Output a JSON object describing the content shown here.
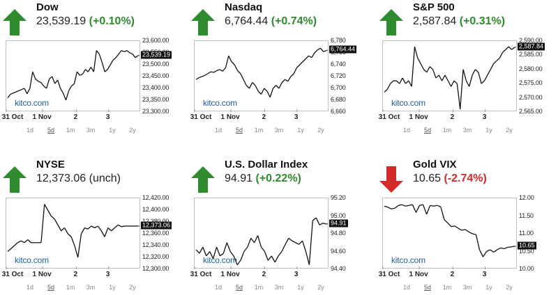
{
  "range_labels": [
    "1d",
    "5d",
    "1m",
    "3m",
    "1y",
    "2y"
  ],
  "active_range": "5d",
  "brand": "kitco.com",
  "colors": {
    "up": "#2e8b2e",
    "down": "#d42a2a",
    "line": "#111111",
    "grid": "#bfbfbf"
  },
  "panels": [
    {
      "name": "Dow",
      "price": "23,539.19",
      "change": "(+0.10%)",
      "direction": "up",
      "current_label": "23,539.19",
      "chart_data": {
        "type": "line",
        "x_labels": [
          "31 Oct",
          "1 Nov",
          "2",
          "3"
        ],
        "y_ticks": [
          "23,600.00",
          "23,550.00",
          "23,500.00",
          "23,450.00",
          "23,400.00",
          "23,350.00",
          "23,300.00"
        ],
        "ylim": [
          23300,
          23600
        ],
        "current": 23539.19,
        "values": [
          23360,
          23375,
          23380,
          23385,
          23390,
          23395,
          23400,
          23377,
          23400,
          23470,
          23440,
          23430,
          23425,
          23410,
          23400,
          23440,
          23450,
          23420,
          23435,
          23400,
          23380,
          23350,
          23390,
          23410,
          23420,
          23470,
          23455,
          23460,
          23480,
          23470,
          23490,
          23470,
          23560,
          23545,
          23510,
          23470,
          23480,
          23500,
          23520,
          23530,
          23545,
          23560,
          23555,
          23560,
          23550,
          23545,
          23530,
          23539
        ]
      }
    },
    {
      "name": "Nasdaq",
      "price": "6,764.44",
      "change": "(+0.74%)",
      "direction": "up",
      "current_label": "6,764.44",
      "chart_data": {
        "type": "line",
        "x_labels": [
          "31 Oct",
          "1 Nov",
          "2",
          "3"
        ],
        "y_ticks": [
          "6,780",
          "6,760",
          "6,740",
          "6,720",
          "6,700",
          "6,680",
          "6,660"
        ],
        "ylim": [
          6660,
          6780
        ],
        "current": 6764.44,
        "values": [
          6715,
          6718,
          6720,
          6722,
          6725,
          6728,
          6727,
          6730,
          6732,
          6729,
          6735,
          6755,
          6745,
          6740,
          6730,
          6725,
          6715,
          6705,
          6700,
          6710,
          6705,
          6695,
          6690,
          6700,
          6695,
          6685,
          6700,
          6705,
          6700,
          6710,
          6715,
          6712,
          6720,
          6725,
          6735,
          6740,
          6745,
          6750,
          6755,
          6752,
          6760,
          6765,
          6768,
          6762,
          6764
        ]
      }
    },
    {
      "name": "S&P 500",
      "price": "2,587.84",
      "change": "(+0.31%)",
      "direction": "up",
      "current_label": "2,587.84",
      "chart_data": {
        "type": "line",
        "x_labels": [
          "31 Oct",
          "1 Nov",
          "2",
          "3"
        ],
        "y_ticks": [
          "2,590.00",
          "2,585.00",
          "2,580.00",
          "2,575.00",
          "2,570.00",
          "2,565.00"
        ],
        "ylim": [
          2565,
          2590
        ],
        "current": 2587.84,
        "values": [
          2572,
          2573,
          2575,
          2576,
          2576,
          2575,
          2577,
          2575,
          2576,
          2574,
          2588,
          2584,
          2582,
          2580,
          2579,
          2581,
          2580,
          2577,
          2578,
          2576,
          2578,
          2576,
          2574,
          2576,
          2575,
          2566,
          2580,
          2576,
          2574,
          2578,
          2580,
          2579,
          2575,
          2576,
          2578,
          2580,
          2582,
          2583,
          2584,
          2586,
          2587,
          2588,
          2587,
          2587.84
        ]
      }
    },
    {
      "name": "NYSE",
      "price": "12,373.06",
      "change": "(unch)",
      "direction": "up",
      "current_label": "12,373.06",
      "chart_data": {
        "type": "line",
        "x_labels": [
          "31 Oct",
          "1 Nov",
          "2",
          "3"
        ],
        "y_ticks": [
          "12,420.00",
          "12,400.00",
          "12,380.00",
          "12,360.00",
          "12,340.00",
          "12,320.00",
          "12,300.00"
        ],
        "ylim": [
          12300,
          12420
        ],
        "current": 12373.06,
        "values": [
          12330,
          12335,
          12340,
          12345,
          12348,
          12345,
          12350,
          12345,
          12345,
          12345,
          12345,
          12410,
          12400,
          12390,
          12385,
          12375,
          12365,
          12370,
          12360,
          12355,
          12340,
          12320,
          12360,
          12370,
          12368,
          12373,
          12370,
          12373,
          12365,
          12355,
          12370,
          12365,
          12370,
          12375,
          12372,
          12373,
          12373,
          12373,
          12373,
          12373.06
        ]
      }
    },
    {
      "name": "U.S. Dollar Index",
      "price": "94.91",
      "change": "(+0.22%)",
      "direction": "up",
      "current_label": "94.91",
      "chart_data": {
        "type": "line",
        "x_labels": [
          "31 Oct",
          "1 Nov",
          "2",
          "3"
        ],
        "y_ticks": [
          "95.20",
          "95.00",
          "94.80",
          "94.60",
          "94.40"
        ],
        "ylim": [
          94.4,
          95.2
        ],
        "current": 94.91,
        "values": [
          94.62,
          94.58,
          94.65,
          94.55,
          94.6,
          94.52,
          94.65,
          94.55,
          94.58,
          94.7,
          94.6,
          94.55,
          94.45,
          94.5,
          94.6,
          94.65,
          94.75,
          94.7,
          94.78,
          94.65,
          94.6,
          94.5,
          94.55,
          94.48,
          94.55,
          94.6,
          94.68,
          94.75,
          94.72,
          94.7,
          94.68,
          94.72,
          94.6,
          94.45,
          94.95,
          94.98,
          94.9,
          94.92,
          94.91
        ]
      }
    },
    {
      "name": "Gold VIX",
      "price": "10.65",
      "change": "(-2.74%)",
      "direction": "down",
      "current_label": "10.65",
      "chart_data": {
        "type": "line",
        "x_labels": [
          "31 Oct",
          "1 Nov",
          "2",
          "3"
        ],
        "y_ticks": [
          "12.00",
          "11.50",
          "11.00",
          "10.50",
          "10.00"
        ],
        "ylim": [
          10.0,
          12.0
        ],
        "current": 10.65,
        "values": [
          11.78,
          11.75,
          11.7,
          11.72,
          11.8,
          11.82,
          11.78,
          11.8,
          11.82,
          11.6,
          11.8,
          11.82,
          11.55,
          11.8,
          11.78,
          11.8,
          11.76,
          11.4,
          11.3,
          11.2,
          11.22,
          11.15,
          11.1,
          11.12,
          11.05,
          11.0,
          10.98,
          10.55,
          10.35,
          10.5,
          10.55,
          10.48,
          10.55,
          10.6,
          10.58,
          10.62,
          10.63,
          10.65
        ]
      }
    }
  ]
}
